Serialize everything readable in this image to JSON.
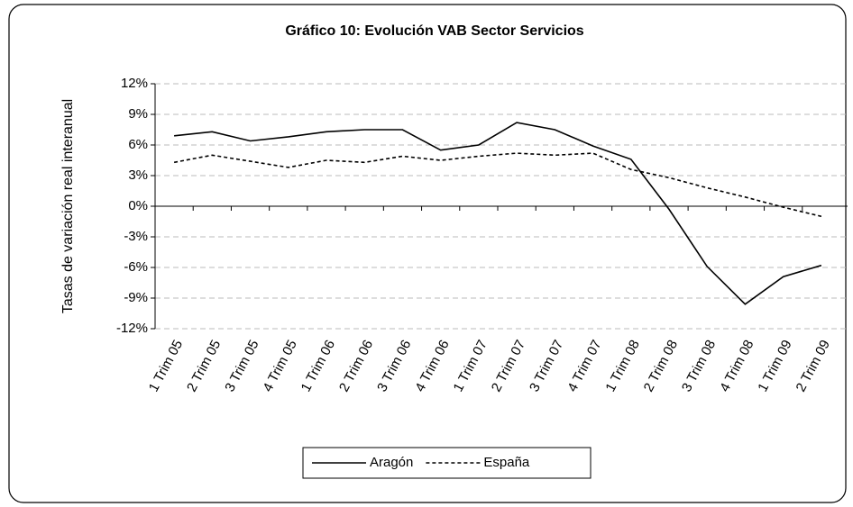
{
  "chart_data": {
    "type": "line",
    "title": "Gráfico 10: Evolución VAB Sector Servicios",
    "y_label": "Tasas de variación real interanual",
    "categories": [
      "1 Trim 05",
      "2 Trim 05",
      "3 Trim 05",
      "4 Trim 05",
      "1 Trim 06",
      "2 Trim 06",
      "3 Trim 06",
      "4 Trim 06",
      "1 Trim 07",
      "2 Trim 07",
      "3 Trim 07",
      "4 Trim 07",
      "1 Trim 08",
      "2 Trim 08",
      "3 Trim 08",
      "4 Trim 08",
      "1 Trim 09",
      "2 Trim 09"
    ],
    "series": [
      {
        "name": "Aragón",
        "color": "#000000",
        "dash": "solid",
        "values": [
          6.9,
          7.3,
          6.4,
          6.8,
          7.3,
          7.5,
          7.5,
          5.5,
          6.0,
          8.2,
          7.5,
          5.9,
          4.6,
          -0.3,
          -5.9,
          -9.6,
          -6.9,
          -5.8
        ]
      },
      {
        "name": "España",
        "color": "#000000",
        "dash": "dotted",
        "values": [
          4.3,
          5.0,
          4.4,
          3.8,
          4.5,
          4.3,
          4.9,
          4.5,
          4.9,
          5.2,
          5.0,
          5.2,
          3.6,
          2.8,
          1.8,
          0.9,
          -0.1,
          -1.0
        ]
      }
    ],
    "ylim": [
      -12,
      12
    ],
    "yticks": [
      {
        "value": -12,
        "label": "-12%"
      },
      {
        "value": -9,
        "label": "-9%"
      },
      {
        "value": -6,
        "label": "-6%"
      },
      {
        "value": -3,
        "label": "-3%"
      },
      {
        "value": 0,
        "label": "0%"
      },
      {
        "value": 3,
        "label": "3%"
      },
      {
        "value": 6,
        "label": "6%"
      },
      {
        "value": 9,
        "label": "9%"
      },
      {
        "value": 12,
        "label": "12%"
      }
    ],
    "grid": true,
    "legend": "bottom"
  }
}
